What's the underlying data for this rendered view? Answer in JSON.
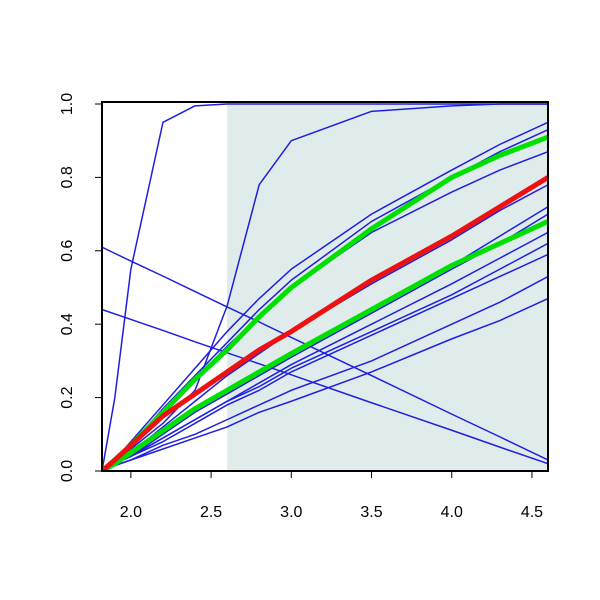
{
  "chart_data": {
    "type": "line",
    "x": [
      1.82,
      1.9,
      2.0,
      2.2,
      2.4,
      2.6,
      2.8,
      3.0,
      3.5,
      4.0,
      4.3,
      4.6
    ],
    "xlim": [
      1.82,
      4.6
    ],
    "ylim": [
      0,
      1
    ],
    "xticks": [
      {
        "value": 2,
        "label": "2.0"
      },
      2.5,
      {
        "value": 3,
        "label": "3.0"
      },
      3.5,
      {
        "value": 4,
        "label": "4.0"
      },
      4.5
    ],
    "yticks": [
      {
        "value": 0,
        "label": "0.0"
      },
      0.2,
      0.4,
      0.6,
      0.8,
      {
        "value": 1,
        "label": "1.0"
      }
    ],
    "shaded_x": [
      2.6,
      4.6
    ],
    "shade_color": "#e0ecec",
    "series": [
      {
        "color": "#1f1fe0",
        "width": 1.5,
        "values": [
          0,
          0.2,
          0.55,
          0.95,
          0.995,
          1,
          1,
          1,
          1,
          1,
          1,
          1
        ]
      },
      {
        "color": "#1f1fe0",
        "width": 1.5,
        "values": [
          0,
          0.03,
          0.06,
          0.13,
          0.22,
          0.45,
          0.78,
          0.9,
          0.98,
          0.995,
          1,
          1
        ]
      },
      {
        "color": "#1f1fe0",
        "width": 1.5,
        "values": [
          0.61,
          0.593,
          0.572,
          0.531,
          0.489,
          0.447,
          0.406,
          0.364,
          0.26,
          0.155,
          0.093,
          0.03
        ]
      },
      {
        "color": "#1f1fe0",
        "width": 1.5,
        "values": [
          0.44,
          0.428,
          0.413,
          0.383,
          0.352,
          0.322,
          0.292,
          0.262,
          0.186,
          0.111,
          0.065,
          0.02
        ]
      },
      {
        "color": "#1f1fe0",
        "width": 1.5,
        "values": [
          0,
          0.03,
          0.08,
          0.18,
          0.28,
          0.38,
          0.47,
          0.55,
          0.7,
          0.82,
          0.89,
          0.95
        ]
      },
      {
        "color": "#1f1fe0",
        "width": 1.5,
        "values": [
          0,
          0.03,
          0.07,
          0.16,
          0.25,
          0.34,
          0.42,
          0.5,
          0.65,
          0.76,
          0.82,
          0.87
        ]
      },
      {
        "color": "#1f1fe0",
        "width": 1.5,
        "values": [
          0,
          0.03,
          0.07,
          0.17,
          0.26,
          0.35,
          0.44,
          0.52,
          0.68,
          0.8,
          0.87,
          0.93
        ]
      },
      {
        "color": "#1f1fe0",
        "width": 1.5,
        "values": [
          0,
          0.02,
          0.05,
          0.12,
          0.19,
          0.26,
          0.32,
          0.38,
          0.51,
          0.63,
          0.71,
          0.78
        ]
      },
      {
        "color": "#1f1fe0",
        "width": 1.5,
        "values": [
          0,
          0.02,
          0.05,
          0.11,
          0.17,
          0.22,
          0.27,
          0.32,
          0.44,
          0.56,
          0.64,
          0.72
        ]
      },
      {
        "color": "#1f1fe0",
        "width": 1.5,
        "values": [
          0,
          0.02,
          0.04,
          0.1,
          0.16,
          0.21,
          0.26,
          0.31,
          0.43,
          0.55,
          0.62,
          0.7
        ]
      },
      {
        "color": "#1f1fe0",
        "width": 1.5,
        "values": [
          0,
          0.02,
          0.04,
          0.09,
          0.14,
          0.19,
          0.24,
          0.29,
          0.4,
          0.51,
          0.58,
          0.65
        ]
      },
      {
        "color": "#1f1fe0",
        "width": 1.5,
        "values": [
          0,
          0.02,
          0.04,
          0.09,
          0.14,
          0.19,
          0.23,
          0.28,
          0.38,
          0.48,
          0.55,
          0.62
        ]
      },
      {
        "color": "#1f1fe0",
        "width": 1.5,
        "values": [
          0,
          0.02,
          0.04,
          0.08,
          0.13,
          0.18,
          0.22,
          0.27,
          0.37,
          0.47,
          0.53,
          0.59
        ]
      },
      {
        "color": "#1f1fe0",
        "width": 1.5,
        "values": [
          0,
          0.015,
          0.03,
          0.07,
          0.1,
          0.14,
          0.18,
          0.22,
          0.3,
          0.4,
          0.46,
          0.53
        ]
      },
      {
        "color": "#1f1fe0",
        "width": 1.5,
        "values": [
          0,
          0.015,
          0.03,
          0.06,
          0.09,
          0.12,
          0.16,
          0.19,
          0.27,
          0.36,
          0.41,
          0.47
        ]
      },
      {
        "color": "#00e000",
        "width": 5,
        "values": [
          0,
          0.03,
          0.07,
          0.16,
          0.25,
          0.33,
          0.42,
          0.5,
          0.66,
          0.8,
          0.86,
          0.91
        ]
      },
      {
        "color": "#00e000",
        "width": 5,
        "values": [
          0,
          0.02,
          0.05,
          0.11,
          0.17,
          0.22,
          0.27,
          0.32,
          0.44,
          0.56,
          0.62,
          0.68
        ]
      },
      {
        "color": "#ee1111",
        "width": 5,
        "values": [
          0,
          0.03,
          0.07,
          0.15,
          0.21,
          0.27,
          0.33,
          0.38,
          0.52,
          0.64,
          0.72,
          0.8
        ]
      }
    ]
  }
}
